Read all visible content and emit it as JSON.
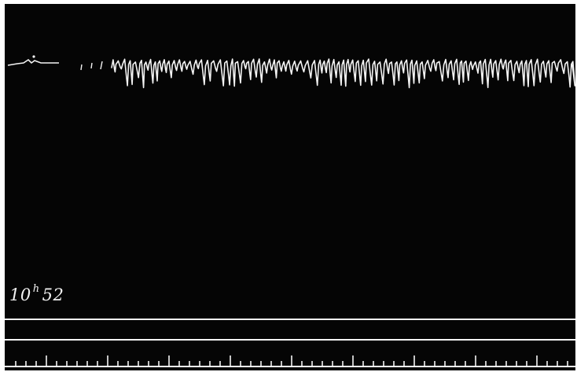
{
  "colors": {
    "background": "#050505",
    "border": "#ffffff",
    "trace": "#f4f4f4"
  },
  "annotation": {
    "hours": "10",
    "hour_mark": "h",
    "minutes": "52"
  }
}
